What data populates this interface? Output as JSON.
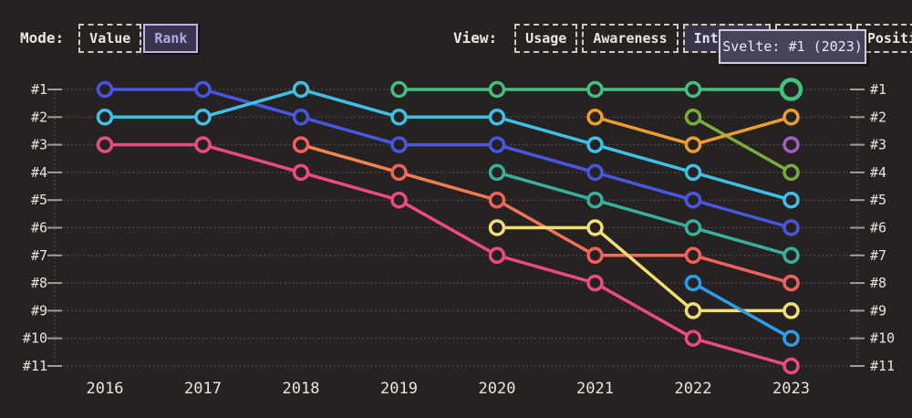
{
  "colors": {
    "background": "#272222",
    "text": "#eae5de",
    "accent_lavender": "#b4a7ea",
    "grid": "rgba(255,255,255,0.28)",
    "tick": "#a19b94"
  },
  "mode_control": {
    "label": "Mode:",
    "options": [
      {
        "label": "Value",
        "selected": false
      },
      {
        "label": "Rank",
        "selected": true
      }
    ]
  },
  "view_control": {
    "label": "View:",
    "options": [
      {
        "label": "Usage",
        "selected": false
      },
      {
        "label": "Awareness",
        "selected": false
      },
      {
        "label": "Interest",
        "selected": true
      },
      {
        "label": "",
        "selected": false,
        "note": "button fully hidden behind tooltip, only dashed border visible"
      },
      {
        "label": "Positivity",
        "selected": false,
        "note": "mostly hidden behind tooltip, only trailing letters visible"
      }
    ]
  },
  "tooltip": {
    "text": "Svelte: #1 (2023)"
  },
  "chart_data": {
    "type": "line",
    "subtype": "bump-rank-chart",
    "x": [
      "2016",
      "2017",
      "2018",
      "2019",
      "2020",
      "2021",
      "2022",
      "2023"
    ],
    "y_axis": {
      "labels": [
        "#1",
        "#2",
        "#3",
        "#4",
        "#5",
        "#6",
        "#7",
        "#8",
        "#9",
        "#10",
        "#11"
      ],
      "min": 1,
      "max": 11,
      "inverted": true,
      "shown_both_sides": true
    },
    "grid": "dotted horizontal per rank, dotted vertical edge axes with solid ticks",
    "legend": "none (colors only; green series identified as Svelte by tooltip)",
    "highlight": {
      "series_index": 4,
      "year": "2023",
      "rank": 1,
      "tooltip": "Svelte: #1 (2023)"
    },
    "series": [
      {
        "name": "royal-blue",
        "color": "#4956e2",
        "ranks": [
          1,
          1,
          2,
          3,
          3,
          4,
          5,
          6
        ]
      },
      {
        "name": "cyan",
        "color": "#3fc1e5",
        "ranks": [
          2,
          2,
          1,
          2,
          2,
          3,
          4,
          5
        ]
      },
      {
        "name": "pink",
        "color": "#ec4a84",
        "ranks": [
          3,
          3,
          4,
          5,
          7,
          8,
          10,
          11
        ]
      },
      {
        "name": "salmon-red",
        "color": "#f2625a",
        "gradient": [
          "#f08a4c",
          "#f25c60"
        ],
        "ranks": [
          null,
          null,
          3,
          4,
          5,
          7,
          7,
          8
        ]
      },
      {
        "name": "green-svelte",
        "color": "#43c17e",
        "ranks": [
          null,
          null,
          null,
          1,
          1,
          1,
          1,
          1
        ],
        "end_highlight": true
      },
      {
        "name": "teal",
        "color": "#38b09c",
        "ranks": [
          null,
          null,
          null,
          null,
          4,
          5,
          6,
          7
        ]
      },
      {
        "name": "yellow",
        "color": "#f3df73",
        "ranks": [
          null,
          null,
          null,
          null,
          6,
          6,
          9,
          9
        ]
      },
      {
        "name": "olive-green",
        "color": "#78ae3f",
        "ranks": [
          null,
          null,
          null,
          null,
          null,
          null,
          2,
          4
        ]
      },
      {
        "name": "orange",
        "color": "#eb9d2e",
        "ranks": [
          null,
          null,
          null,
          null,
          null,
          2,
          3,
          2
        ]
      },
      {
        "name": "dodger-blue",
        "color": "#2f9ceb",
        "ranks": [
          null,
          null,
          null,
          null,
          null,
          null,
          8,
          10
        ]
      },
      {
        "name": "purple",
        "color": "#a45cc0",
        "ranks": [
          null,
          null,
          null,
          null,
          null,
          null,
          null,
          3
        ]
      }
    ]
  }
}
